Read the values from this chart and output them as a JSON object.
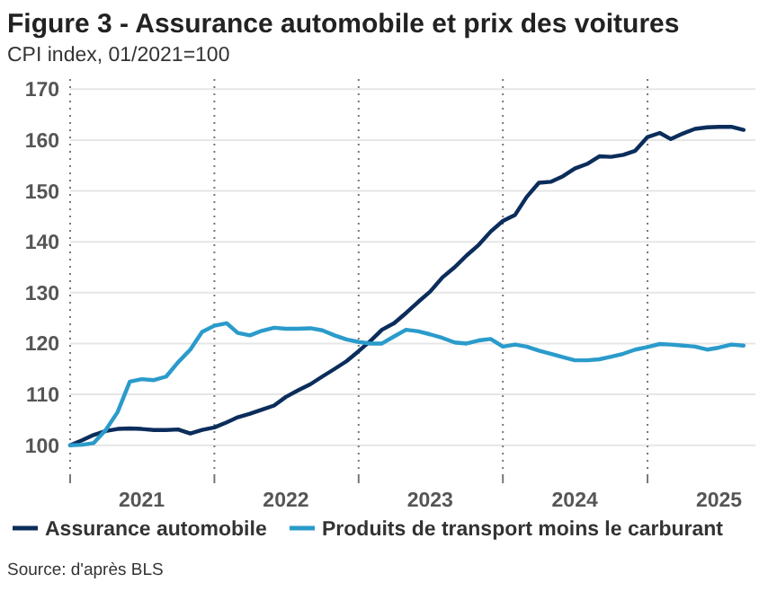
{
  "chart_data": {
    "type": "line",
    "title": "Figure 3 - Assurance automobile et prix des voitures",
    "subtitle": "CPI index, 01/2021=100",
    "annotations": [
      "Source: d'après BLS"
    ],
    "x": [
      "2021-01",
      "2021-02",
      "2021-03",
      "2021-04",
      "2021-05",
      "2021-06",
      "2021-07",
      "2021-08",
      "2021-09",
      "2021-10",
      "2021-11",
      "2021-12",
      "2022-01",
      "2022-02",
      "2022-03",
      "2022-04",
      "2022-05",
      "2022-06",
      "2022-07",
      "2022-08",
      "2022-09",
      "2022-10",
      "2022-11",
      "2022-12",
      "2023-01",
      "2023-02",
      "2023-03",
      "2023-04",
      "2023-05",
      "2023-06",
      "2023-07",
      "2023-08",
      "2023-09",
      "2023-10",
      "2023-11",
      "2023-12",
      "2024-01",
      "2024-02",
      "2024-03",
      "2024-04",
      "2024-05",
      "2024-06",
      "2024-07",
      "2024-08",
      "2024-09",
      "2024-10",
      "2024-11",
      "2024-12",
      "2025-01",
      "2025-02",
      "2025-03",
      "2025-04",
      "2025-05",
      "2025-06",
      "2025-07",
      "2025-08",
      "2025-09"
    ],
    "series": [
      {
        "name": "Assurance automobile",
        "color": "#0b2d5b",
        "values": [
          100,
          101,
          102,
          102.8,
          103.2,
          103.3,
          103.2,
          103,
          103,
          103.1,
          102.3,
          103,
          103.5,
          104.5,
          105.5,
          106.2,
          107,
          107.8,
          109.5,
          110.8,
          112,
          113.5,
          115,
          116.5,
          118.5,
          120.6,
          122.7,
          124,
          126,
          128.2,
          130.2,
          133,
          135,
          137.3,
          139.4,
          142,
          144.1,
          145.3,
          148.8,
          151.6,
          151.8,
          152.9,
          154.4,
          155.3,
          156.8,
          156.7,
          157.1,
          157.9,
          160.6,
          161.4,
          160.2,
          161.3,
          162.2,
          162.5,
          162.6,
          162.6,
          162
        ]
      },
      {
        "name": "Produits de transport moins le carburant",
        "color": "#2a9bcb",
        "values": [
          100,
          100.1,
          100.4,
          103,
          106.5,
          112.5,
          113,
          112.8,
          113.5,
          116.3,
          118.8,
          122.3,
          123.5,
          124,
          122.1,
          121.6,
          122.5,
          123.1,
          122.9,
          122.9,
          123,
          122.6,
          121.6,
          120.8,
          120.3,
          120,
          120,
          121.4,
          122.7,
          122.4,
          121.8,
          121.1,
          120.2,
          120,
          120.6,
          120.9,
          119.4,
          119.8,
          119.4,
          118.6,
          118,
          117.3,
          116.7,
          116.7,
          116.9,
          117.4,
          118,
          118.8,
          119.3,
          119.9,
          119.8,
          119.6,
          119.4,
          118.8,
          119.2,
          119.8,
          119.6
        ]
      }
    ],
    "xlim": [
      "2021-01",
      "2025-10"
    ],
    "xticks": [
      {
        "value": "2021-01",
        "label": null
      },
      {
        "value": "2021-07",
        "label": "2021"
      },
      {
        "value": "2022-01",
        "label": null
      },
      {
        "value": "2022-07",
        "label": "2022"
      },
      {
        "value": "2023-01",
        "label": null
      },
      {
        "value": "2023-07",
        "label": "2023"
      },
      {
        "value": "2024-01",
        "label": null
      },
      {
        "value": "2024-07",
        "label": "2024"
      },
      {
        "value": "2025-01",
        "label": null
      },
      {
        "value": "2025-07",
        "label": "2025"
      }
    ],
    "ylim": [
      95,
      172
    ],
    "yticks": [
      100,
      110,
      120,
      130,
      140,
      150,
      160,
      170
    ],
    "grid": true,
    "legend": "bottom",
    "marker": "none",
    "line_style": "solid"
  }
}
